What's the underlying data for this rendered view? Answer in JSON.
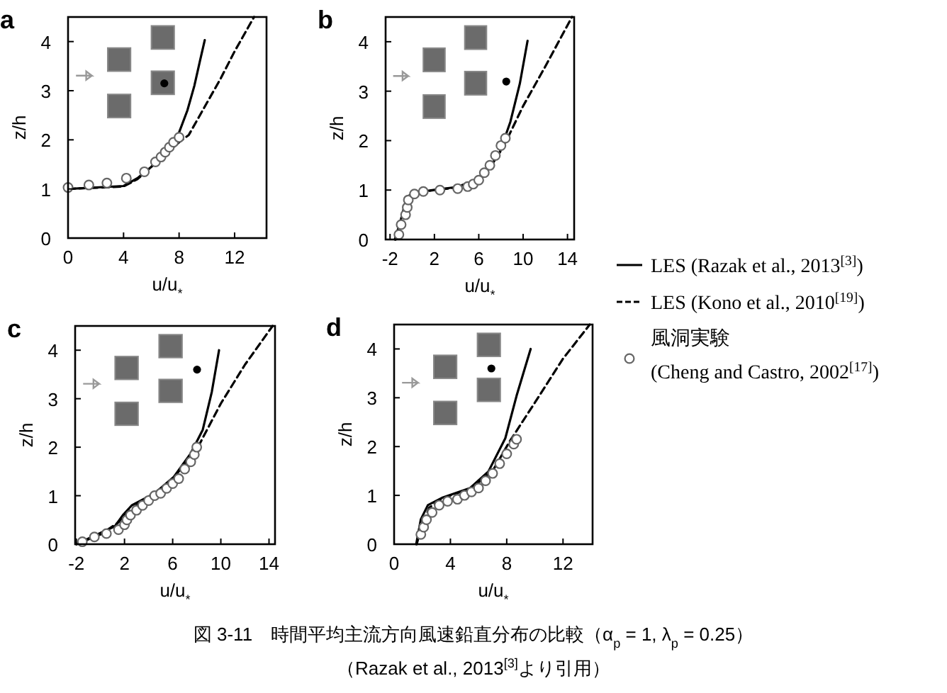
{
  "chart_data": [
    {
      "type": "line",
      "title": "a",
      "xlabel": "u/u$_{*}$",
      "ylabel": "z/h",
      "xlim": [
        0,
        14.3
      ],
      "ylim": [
        0,
        4.5
      ],
      "xticks": [
        0,
        4,
        8,
        12
      ],
      "yticks": [
        0,
        1,
        2,
        3,
        4
      ],
      "grid": false,
      "series": [
        {
          "line_style": "solid",
          "color": "#000000",
          "x": [
            0,
            4,
            5,
            6,
            7,
            8,
            8.6,
            9.1,
            9.5,
            9.85
          ],
          "values": [
            1.0,
            1.06,
            1.22,
            1.45,
            1.75,
            2.15,
            2.6,
            3.1,
            3.6,
            4.03
          ]
        },
        {
          "line_style": "dashed",
          "color": "#000000",
          "x": [
            0,
            4,
            5,
            6,
            7,
            8,
            8.7,
            10,
            11,
            12,
            13.4
          ],
          "values": [
            1.0,
            1.05,
            1.2,
            1.45,
            1.7,
            1.95,
            2.1,
            2.75,
            3.25,
            3.8,
            4.5
          ]
        },
        {
          "type": "scatter",
          "marker": "circle",
          "color": "#666666",
          "x": [
            0,
            1.5,
            2.8,
            4.2,
            5.5,
            6.3,
            6.7,
            7,
            7.3,
            7.6,
            8
          ],
          "values": [
            1.03,
            1.08,
            1.12,
            1.22,
            1.35,
            1.55,
            1.65,
            1.75,
            1.85,
            1.95,
            2.05
          ]
        }
      ]
    },
    {
      "type": "line",
      "title": "b",
      "xlabel": "u/u$_{*}$",
      "ylabel": "z/h",
      "xlim": [
        -2.4,
        14.6
      ],
      "ylim": [
        0,
        4.5
      ],
      "xticks": [
        -2,
        2,
        6,
        10,
        14
      ],
      "yticks": [
        0,
        1,
        2,
        3,
        4
      ],
      "grid": false,
      "legend": "right",
      "series": [
        {
          "name": "LES (Razak et al., 2013$^{[3]}$)",
          "line_style": "solid",
          "color": "#000000",
          "x": [
            -1.57,
            -1.06,
            -0.5,
            0.13,
            1.8,
            4.0,
            6.1,
            7.8,
            8.85,
            9.7,
            10.4
          ],
          "values": [
            0,
            0.37,
            0.85,
            0.94,
            1.0,
            1.06,
            1.23,
            1.71,
            2.38,
            3.15,
            4.02
          ]
        },
        {
          "name": "LES (Kono et al., 2010$^{[19]}$)",
          "line_style": "dashed",
          "color": "#000000",
          "x": [
            -1.5,
            -1,
            -0.5,
            0,
            2,
            4,
            6,
            7,
            8,
            8.6,
            10,
            12,
            14.4
          ],
          "values": [
            0,
            0.4,
            0.85,
            0.93,
            1.0,
            1.05,
            1.2,
            1.45,
            1.8,
            2.05,
            2.7,
            3.5,
            4.5
          ]
        },
        {
          "name": "風洞実験 (Cheng and Castro, 2002$^{[17]}$)",
          "type": "scatter",
          "marker": "circle",
          "color": "#666666",
          "x": [
            -1.2,
            -1.0,
            -0.6,
            -0.45,
            -0.35,
            0.2,
            1,
            2.5,
            4.1,
            5,
            5.5,
            6,
            6.5,
            7,
            7.5,
            8,
            8.4
          ],
          "values": [
            0.1,
            0.3,
            0.5,
            0.65,
            0.8,
            0.92,
            0.97,
            1.0,
            1.03,
            1.07,
            1.12,
            1.2,
            1.35,
            1.5,
            1.7,
            1.9,
            2.05
          ]
        }
      ]
    },
    {
      "type": "line",
      "title": "c",
      "xlabel": "u/u$_{*}$",
      "ylabel": "z/h",
      "xlim": [
        -2.1,
        14.5
      ],
      "ylim": [
        0,
        4.5
      ],
      "xticks": [
        -2,
        2,
        6,
        10,
        14
      ],
      "yticks": [
        0,
        1,
        2,
        3,
        4
      ],
      "grid": false,
      "series": [
        {
          "line_style": "solid",
          "color": "#000000",
          "x": [
            -2,
            -0.55,
            1.2,
            1.9,
            2.6,
            4.5,
            6.1,
            7.5,
            8.5,
            9.25,
            9.85
          ],
          "values": [
            0,
            0.17,
            0.37,
            0.61,
            0.8,
            1.05,
            1.39,
            1.87,
            2.36,
            3.14,
            4.0
          ]
        },
        {
          "line_style": "dashed",
          "color": "#000000",
          "x": [
            -2,
            0,
            1.5,
            2,
            3,
            4.5,
            6,
            7.5,
            8.2,
            10,
            12,
            14.3
          ],
          "values": [
            0,
            0.2,
            0.45,
            0.6,
            0.8,
            1.02,
            1.35,
            1.8,
            2.05,
            2.9,
            3.7,
            4.5
          ]
        },
        {
          "type": "scatter",
          "marker": "circle",
          "color": "#666666",
          "x": [
            -1.5,
            -0.5,
            0.5,
            1.5,
            2,
            2.2,
            2.5,
            3,
            3.5,
            4,
            4.5,
            5,
            5.5,
            6,
            6.5,
            7,
            7.5,
            7.8,
            8
          ],
          "values": [
            0.05,
            0.15,
            0.22,
            0.3,
            0.4,
            0.5,
            0.6,
            0.7,
            0.8,
            0.9,
            1.0,
            1.05,
            1.15,
            1.25,
            1.35,
            1.55,
            1.7,
            1.85,
            2.0
          ]
        }
      ]
    },
    {
      "type": "line",
      "title": "d",
      "xlabel": "u/u$_{*}$",
      "ylabel": "z/h",
      "xlim": [
        0,
        14.1
      ],
      "ylim": [
        0,
        4.5
      ],
      "xticks": [
        0,
        4,
        8,
        12
      ],
      "yticks": [
        0,
        1,
        2,
        3,
        4
      ],
      "grid": false,
      "annotations": [
        "図 3-11　時間平均主流方向風速鉛直分布の比較（α$_{p}$ = 1,  λ$_{p}$ = 0.25）",
        "（Razak et al., 2013$^{[3]}$より引用）"
      ],
      "series": [
        {
          "line_style": "solid",
          "color": "#000000",
          "x": [
            1.57,
            1.9,
            2.4,
            3.4,
            5.4,
            6.7,
            7.9,
            8.7,
            9.7
          ],
          "values": [
            0,
            0.51,
            0.8,
            0.95,
            1.15,
            1.49,
            2.17,
            3.04,
            4.0
          ]
        },
        {
          "line_style": "dashed",
          "color": "#000000",
          "x": [
            1.6,
            2,
            2.5,
            3.5,
            5.5,
            7,
            8.2,
            10,
            12,
            13.9
          ],
          "values": [
            0,
            0.4,
            0.75,
            0.95,
            1.15,
            1.5,
            2.1,
            2.9,
            3.8,
            4.5
          ]
        },
        {
          "type": "scatter",
          "marker": "circle",
          "color": "#666666",
          "x": [
            1.9,
            2.1,
            2.3,
            2.7,
            3.2,
            3.8,
            4.5,
            5,
            5.5,
            6,
            6.5,
            7,
            7.5,
            8,
            8.5,
            8.7
          ],
          "values": [
            0.2,
            0.35,
            0.5,
            0.65,
            0.8,
            0.88,
            0.92,
            1.0,
            1.07,
            1.15,
            1.3,
            1.45,
            1.65,
            1.85,
            2.05,
            2.15
          ]
        }
      ]
    }
  ]
}
